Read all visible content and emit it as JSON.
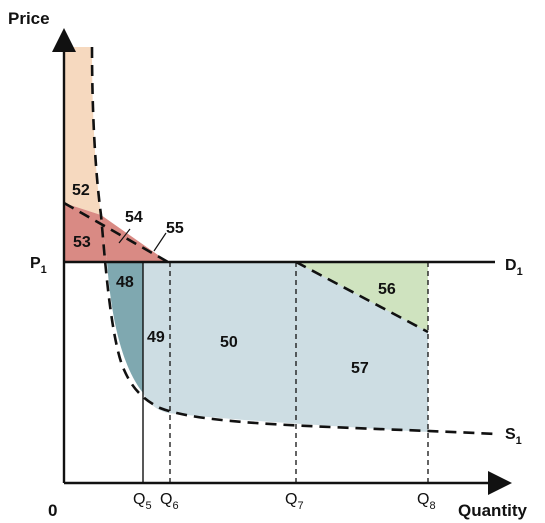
{
  "axes": {
    "y_title": "Price",
    "x_title": "Quantity",
    "origin": "0"
  },
  "price_label": {
    "main": "P",
    "sub": "1"
  },
  "curve_labels": {
    "demand": {
      "main": "D",
      "sub": "1"
    },
    "supply": {
      "main": "S",
      "sub": "1"
    }
  },
  "quantity_labels": [
    {
      "main": "Q",
      "sub": "5"
    },
    {
      "main": "Q",
      "sub": "6"
    },
    {
      "main": "Q",
      "sub": "7"
    },
    {
      "main": "Q",
      "sub": "8"
    }
  ],
  "regions": [
    {
      "label": "52",
      "color": "#f6d9bf"
    },
    {
      "label": "53",
      "color": "#d98a84"
    },
    {
      "label": "54",
      "color": "#d98a84"
    },
    {
      "label": "55",
      "color": "#d98a84"
    },
    {
      "label": "48",
      "color": "#7fa8b0"
    },
    {
      "label": "49",
      "color": "#cddde3"
    },
    {
      "label": "50",
      "color": "#cddde3"
    },
    {
      "label": "56",
      "color": "#cfe3bf"
    },
    {
      "label": "57",
      "color": "#cddde3"
    }
  ],
  "colors": {
    "line": "#111111",
    "background": "#ffffff"
  }
}
